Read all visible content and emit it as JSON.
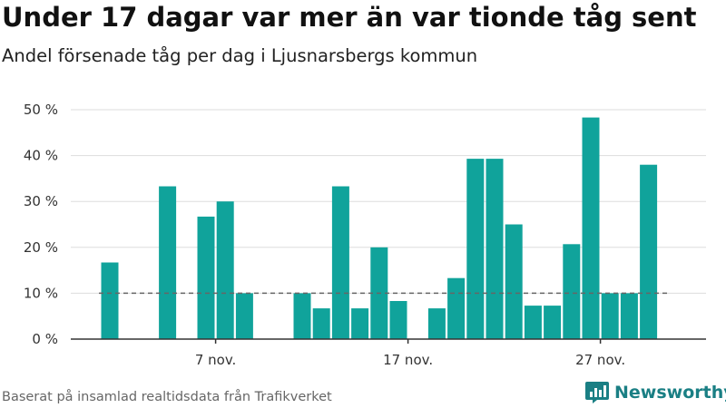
{
  "header": {
    "title": "Under 17 dagar var mer än var tionde tåg sent",
    "subtitle": "Andel försenade tåg per dag i Ljusnarsbergs kommun"
  },
  "footer": {
    "source": "Baserat på insamlad realtidsdata från Trafikverket",
    "brand": "Newsworthy"
  },
  "colors": {
    "bar": "#10a39b",
    "grid": "#dddddd",
    "reference_line": "#666666",
    "brand": "#1a7f84"
  },
  "chart_data": {
    "type": "bar",
    "title": "Under 17 dagar var mer än var tionde tåg sent",
    "subtitle": "Andel försenade tåg per dag i Ljusnarsbergs kommun",
    "x_unit": "day of November",
    "categories": [
      2,
      3,
      4,
      5,
      6,
      7,
      8,
      9,
      10,
      11,
      12,
      13,
      14,
      15,
      16,
      17,
      18,
      19,
      20,
      21,
      22,
      23,
      24,
      25,
      26,
      27,
      28,
      29,
      30
    ],
    "values": [
      16.7,
      null,
      null,
      33.3,
      null,
      26.7,
      30,
      10,
      null,
      null,
      10,
      6.7,
      33.3,
      6.7,
      20,
      8.3,
      null,
      6.7,
      13.3,
      39.3,
      39.3,
      25,
      7.3,
      7.3,
      20.7,
      48.3,
      10,
      10,
      38
    ],
    "y_ticks": [
      0,
      10,
      20,
      30,
      40,
      50
    ],
    "y_tick_labels": [
      "0 %",
      "10 %",
      "20 %",
      "30 %",
      "40 %",
      "50 %"
    ],
    "x_ticks": [
      7,
      17,
      27
    ],
    "x_tick_labels": [
      "7 nov.",
      "17 nov.",
      "27 nov."
    ],
    "ylim": [
      0,
      50
    ],
    "reference_line": 10,
    "grid": "horizontal",
    "legend": "none"
  }
}
